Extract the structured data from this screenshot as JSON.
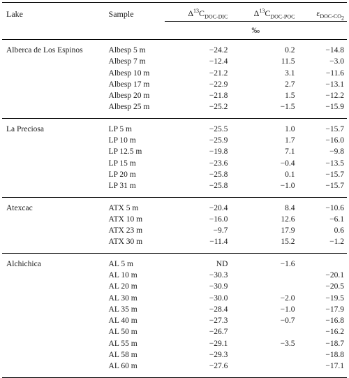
{
  "header": {
    "col_lake": "Lake",
    "col_sample": "Sample",
    "col_dic": {
      "prefix": "Δ",
      "sup": "13",
      "main": "C",
      "sub": "DOC-DIC"
    },
    "col_poc": {
      "prefix": "Δ",
      "sup": "13",
      "main": "C",
      "sub": "DOC-POC"
    },
    "col_co2": {
      "prefix": "ε",
      "sub": "DOC-CO",
      "sub2": "2"
    },
    "unit": "‰"
  },
  "groups": [
    {
      "lake": "Alberca de Los Espinos",
      "rows": [
        {
          "sample": "Albesp 5 m",
          "dic": "−24.2",
          "poc": "0.2",
          "co2": "−14.8"
        },
        {
          "sample": "Albesp 7 m",
          "dic": "−12.4",
          "poc": "11.5",
          "co2": "−3.0"
        },
        {
          "sample": "Albesp 10 m",
          "dic": "−21.2",
          "poc": "3.1",
          "co2": "−11.6"
        },
        {
          "sample": "Albesp 17 m",
          "dic": "−22.9",
          "poc": "2.7",
          "co2": "−13.1"
        },
        {
          "sample": "Albesp 20 m",
          "dic": "−21.8",
          "poc": "1.5",
          "co2": "−12.2"
        },
        {
          "sample": "Albesp 25 m",
          "dic": "−25.2",
          "poc": "−1.5",
          "co2": "−15.9"
        }
      ]
    },
    {
      "lake": "La Preciosa",
      "rows": [
        {
          "sample": "LP 5 m",
          "dic": "−25.5",
          "poc": "1.0",
          "co2": "−15.7"
        },
        {
          "sample": "LP 10 m",
          "dic": "−25.9",
          "poc": "1.7",
          "co2": "−16.0"
        },
        {
          "sample": "LP 12.5 m",
          "dic": "−19.8",
          "poc": "7.1",
          "co2": "−9.8"
        },
        {
          "sample": "LP 15 m",
          "dic": "−23.6",
          "poc": "−0.4",
          "co2": "−13.5"
        },
        {
          "sample": "LP 20 m",
          "dic": "−25.8",
          "poc": "0.1",
          "co2": "−15.7"
        },
        {
          "sample": "LP 31 m",
          "dic": "−25.8",
          "poc": "−1.0",
          "co2": "−15.7"
        }
      ]
    },
    {
      "lake": "Atexcac",
      "rows": [
        {
          "sample": "ATX 5 m",
          "dic": "−20.4",
          "poc": "8.4",
          "co2": "−10.6"
        },
        {
          "sample": "ATX 10 m",
          "dic": "−16.0",
          "poc": "12.6",
          "co2": "−6.1"
        },
        {
          "sample": "ATX 23 m",
          "dic": "−9.7",
          "poc": "17.9",
          "co2": "0.6"
        },
        {
          "sample": "ATX 30 m",
          "dic": "−11.4",
          "poc": "15.2",
          "co2": "−1.2"
        }
      ]
    },
    {
      "lake": "Alchichica",
      "rows": [
        {
          "sample": "AL 5 m",
          "dic": "ND",
          "poc": "−1.6",
          "co2": ""
        },
        {
          "sample": "AL 10 m",
          "dic": "−30.3",
          "poc": "",
          "co2": "−20.1"
        },
        {
          "sample": "AL 20 m",
          "dic": "−30.9",
          "poc": "",
          "co2": "−20.5"
        },
        {
          "sample": "AL 30 m",
          "dic": "−30.0",
          "poc": "−2.0",
          "co2": "−19.5"
        },
        {
          "sample": "AL 35 m",
          "dic": "−28.4",
          "poc": "−1.0",
          "co2": "−17.9"
        },
        {
          "sample": "AL 40 m",
          "dic": "−27.3",
          "poc": "−0.7",
          "co2": "−16.8"
        },
        {
          "sample": "AL 50 m",
          "dic": "−26.7",
          "poc": "",
          "co2": "−16.2"
        },
        {
          "sample": "AL 55 m",
          "dic": "−29.1",
          "poc": "−3.5",
          "co2": "−18.7"
        },
        {
          "sample": "AL 58 m",
          "dic": "−29.3",
          "poc": "",
          "co2": "−18.8"
        },
        {
          "sample": "AL 60 m",
          "dic": "−27.6",
          "poc": "",
          "co2": "−17.1"
        }
      ]
    }
  ]
}
